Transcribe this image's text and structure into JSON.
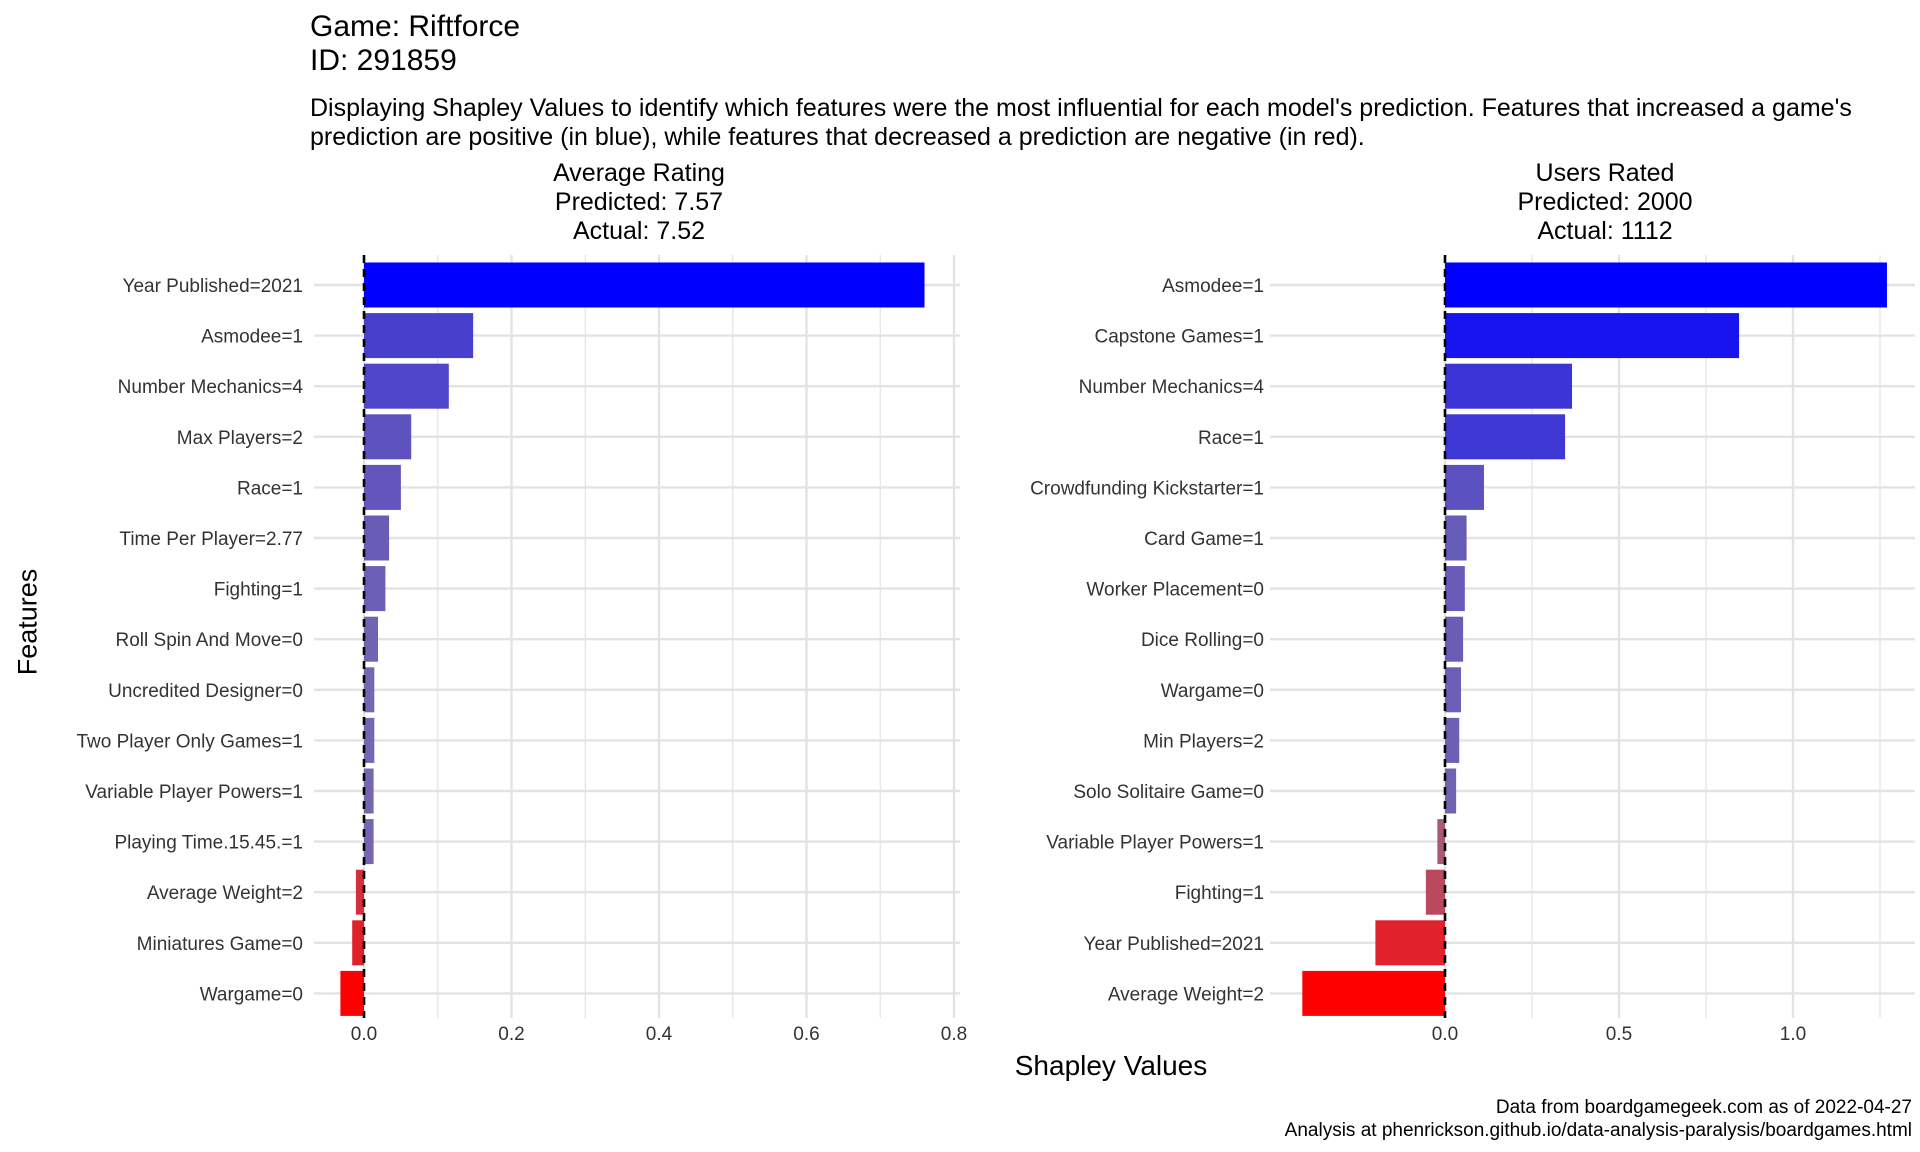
{
  "header": {
    "title_line1": "Game: Riftforce",
    "title_line2": "ID: 291859",
    "subtitle": "Displaying Shapley Values to identify which features were the most influential for each model's prediction. Features that increased a game's prediction are positive (in blue), while features that decreased a prediction are negative (in red)."
  },
  "axes": {
    "xlabel": "Shapley Values",
    "ylabel": "Features"
  },
  "caption": {
    "line1": "Data from boardgamegeek.com as of 2022-04-27",
    "line2": "Analysis at phenrickson.github.io/data-analysis-paralysis/boardgames.html"
  },
  "colors": {
    "positive": "#0000ff",
    "negative": "#ff0000",
    "neutral": "#8b7aa0",
    "grid": "#e3e3e3",
    "zero_line": "#000000",
    "text": "#333333"
  },
  "chart_data": [
    {
      "type": "bar",
      "orientation": "horizontal",
      "title": [
        "Average Rating",
        "Predicted: 7.57",
        "Actual: 7.52"
      ],
      "xlim": [
        -0.045,
        0.8
      ],
      "xticks": [
        "0.0",
        "0.2",
        "0.4",
        "0.6",
        "0.8"
      ],
      "xtick_values": [
        0,
        0.2,
        0.4,
        0.6,
        0.8
      ],
      "zero_line": "dashed",
      "grid": true,
      "categories": [
        "Year Published=2021",
        "Asmodee=1",
        "Number Mechanics=4",
        "Max Players=2",
        "Race=1",
        "Time Per Player=2.77",
        "Fighting=1",
        "Roll Spin And Move=0",
        "Uncredited Designer=0",
        "Two Player Only Games=1",
        "Variable Player Powers=1",
        "Playing Time.15.45.=1",
        "Average Weight=2",
        "Miniatures Game=0",
        "Wargame=0"
      ],
      "values": [
        0.76,
        0.148,
        0.115,
        0.064,
        0.05,
        0.034,
        0.029,
        0.019,
        0.014,
        0.014,
        0.013,
        0.013,
        -0.011,
        -0.016,
        -0.032
      ]
    },
    {
      "type": "bar",
      "orientation": "horizontal",
      "title": [
        "Users Rated",
        "Predicted: 2000",
        "Actual: 1112"
      ],
      "xlim": [
        -0.44,
        1.27
      ],
      "xticks": [
        "0.0",
        "0.5",
        "1.0"
      ],
      "xtick_values": [
        0,
        0.5,
        1.0
      ],
      "zero_line": "dashed",
      "grid": true,
      "categories": [
        "Asmodee=1",
        "Capstone Games=1",
        "Number Mechanics=4",
        "Race=1",
        "Crowdfunding Kickstarter=1",
        "Card Game=1",
        "Worker Placement=0",
        "Dice Rolling=0",
        "Wargame=0",
        "Min Players=2",
        "Solo Solitaire Game=0",
        "Variable Player Powers=1",
        "Fighting=1",
        "Year Published=2021",
        "Average Weight=2"
      ],
      "values": [
        1.27,
        0.845,
        0.365,
        0.345,
        0.112,
        0.062,
        0.057,
        0.052,
        0.046,
        0.041,
        0.032,
        -0.022,
        -0.055,
        -0.2,
        -0.41
      ]
    }
  ]
}
